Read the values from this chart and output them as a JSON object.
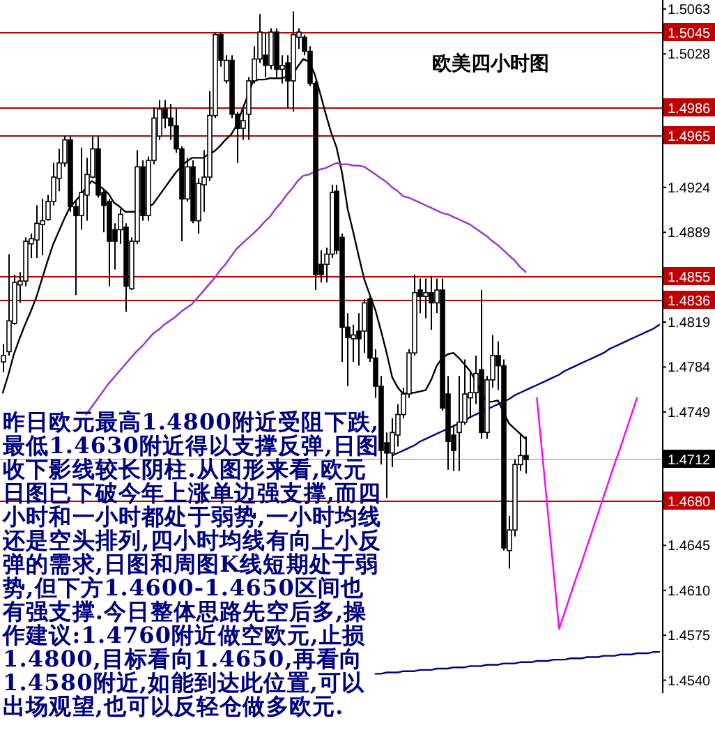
{
  "chart_data": {
    "type": "candlestick",
    "title": "欧美四小时图",
    "categories": [
      null,
      null,
      null,
      null,
      null,
      null,
      null,
      null,
      null,
      null,
      null,
      null,
      null,
      null,
      null,
      null,
      null,
      null,
      null,
      null,
      null,
      null,
      null,
      null,
      null,
      null,
      null,
      null,
      null,
      null,
      null,
      null,
      null,
      null,
      null,
      null,
      null,
      null,
      null,
      null,
      null,
      null,
      null,
      null,
      null,
      null,
      null,
      null,
      null,
      null,
      null,
      null,
      null,
      null,
      null,
      null,
      null,
      null,
      null,
      null,
      null,
      null,
      null,
      null,
      null,
      null,
      null,
      null,
      null,
      null,
      null,
      null,
      null,
      null,
      null,
      null,
      null,
      null,
      null,
      null,
      null,
      null,
      null,
      null,
      null,
      null,
      null,
      null,
      null,
      null,
      null,
      null,
      null,
      null,
      null,
      null,
      null,
      null,
      null,
      null,
      null,
      null,
      null,
      null,
      null,
      null,
      null,
      null,
      null,
      null,
      null,
      null,
      null,
      null,
      null,
      null,
      null,
      null,
      null
    ],
    "ohlc": [
      [
        1.4788,
        1.4802,
        1.478,
        1.4793
      ],
      [
        1.4796,
        1.4872,
        1.4793,
        1.482
      ],
      [
        1.4818,
        1.4856,
        1.4817,
        1.485
      ],
      [
        1.4848,
        1.4858,
        1.4834,
        1.4851
      ],
      [
        1.4851,
        1.4885,
        1.4847,
        1.4882
      ],
      [
        1.488,
        1.4888,
        1.4869,
        1.4884
      ],
      [
        1.4883,
        1.491,
        1.4869,
        1.4896
      ],
      [
        1.4895,
        1.4915,
        1.4871,
        1.4898
      ],
      [
        1.4899,
        1.4918,
        1.4898,
        1.4913
      ],
      [
        1.4913,
        1.4943,
        1.491,
        1.4932
      ],
      [
        1.4931,
        1.4954,
        1.4921,
        1.4943
      ],
      [
        1.4943,
        1.4964,
        1.494,
        1.4961
      ],
      [
        1.4961,
        1.4964,
        1.4905,
        1.4909
      ],
      [
        1.4909,
        1.4913,
        1.484,
        1.4902
      ],
      [
        1.4902,
        1.4955,
        1.4891,
        1.492
      ],
      [
        1.4918,
        1.4947,
        1.4898,
        1.4934
      ],
      [
        1.4932,
        1.4964,
        1.4931,
        1.4954
      ],
      [
        1.4954,
        1.4964,
        1.4916,
        1.4918
      ],
      [
        1.492,
        1.4922,
        1.4889,
        1.491
      ],
      [
        1.4913,
        1.4915,
        1.4847,
        1.4882
      ],
      [
        1.4891,
        1.4896,
        1.486,
        1.4882
      ],
      [
        1.4891,
        1.4907,
        1.488,
        1.4903
      ],
      [
        1.4893,
        1.4896,
        1.4827,
        1.4847
      ],
      [
        1.4845,
        1.4885,
        1.4844,
        1.4882
      ],
      [
        1.4882,
        1.4953,
        1.488,
        1.494
      ],
      [
        1.494,
        1.4945,
        1.4898,
        1.4902
      ],
      [
        1.4902,
        1.4948,
        1.4898,
        1.4945
      ],
      [
        1.4945,
        1.4986,
        1.4942,
        1.4978
      ],
      [
        1.4964,
        1.4992,
        1.4961,
        1.4985
      ],
      [
        1.4985,
        1.4992,
        1.497,
        1.4978
      ],
      [
        1.4978,
        1.4989,
        1.4961,
        1.4972
      ],
      [
        1.4972,
        1.4986,
        1.4951,
        1.4954
      ],
      [
        1.4954,
        1.4956,
        1.4882,
        1.4915
      ],
      [
        1.4915,
        1.4947,
        1.4913,
        1.494
      ],
      [
        1.494,
        1.4945,
        1.4896,
        1.4898
      ],
      [
        1.4898,
        1.4931,
        1.4888,
        1.4927
      ],
      [
        1.4926,
        1.4953,
        1.4905,
        1.4932
      ],
      [
        1.4932,
        1.4999,
        1.4929,
        1.498
      ],
      [
        1.498,
        1.5045,
        1.4978,
        1.5043
      ],
      [
        1.5043,
        1.5045,
        1.5018,
        1.5023
      ],
      [
        1.5007,
        1.5027,
        1.5005,
        1.5023
      ],
      [
        1.5023,
        1.5027,
        1.4978,
        1.4981
      ],
      [
        1.4981,
        1.4983,
        1.4943,
        1.497
      ],
      [
        1.497,
        1.4985,
        1.4961,
        1.4976
      ],
      [
        1.4981,
        1.501,
        1.4961,
        1.5007
      ],
      [
        1.5007,
        1.5034,
        1.5005,
        1.5024
      ],
      [
        1.5024,
        1.5059,
        1.5021,
        1.5045
      ],
      [
        1.5027,
        1.5045,
        1.501,
        1.5019
      ],
      [
        1.5019,
        1.5048,
        1.5016,
        1.5045
      ],
      [
        1.5045,
        1.5048,
        1.501,
        1.5016
      ],
      [
        1.5016,
        1.5027,
        1.5005,
        1.5019
      ],
      [
        1.5021,
        1.5027,
        1.4986,
        1.5007
      ],
      [
        1.5007,
        1.5061,
        1.4983,
        1.5043
      ],
      [
        1.5041,
        1.5048,
        1.5032,
        1.5045
      ],
      [
        1.5041,
        1.5043,
        1.5027,
        1.503
      ],
      [
        1.503,
        1.5034,
        1.5003,
        1.5005
      ],
      [
        1.5005,
        1.5007,
        1.4844,
        1.4856
      ],
      [
        1.4864,
        1.4875,
        1.485,
        1.4856
      ],
      [
        1.4864,
        1.4877,
        1.485,
        1.4872
      ],
      [
        1.4872,
        1.4926,
        1.4869,
        1.492
      ],
      [
        1.4921,
        1.4926,
        1.4872,
        1.4875
      ],
      [
        1.4885,
        1.4888,
        1.4788,
        1.4815
      ],
      [
        1.4815,
        1.4826,
        1.4769,
        1.4807
      ],
      [
        1.4806,
        1.4817,
        1.4788,
        1.4809
      ],
      [
        1.4812,
        1.4826,
        1.4785,
        1.4806
      ],
      [
        1.4812,
        1.4837,
        1.4795,
        1.4834
      ],
      [
        1.4837,
        1.484,
        1.4788,
        1.4791
      ],
      [
        1.4791,
        1.4798,
        1.476,
        1.4769
      ],
      [
        1.4769,
        1.4777,
        1.4708,
        1.4719
      ],
      [
        1.4725,
        1.4733,
        1.4682,
        1.4717
      ],
      [
        1.4717,
        1.4744,
        1.4706,
        1.4733
      ],
      [
        1.4731,
        1.4755,
        1.4722,
        1.4747
      ],
      [
        1.4747,
        1.4768,
        1.4744,
        1.4763
      ],
      [
        1.4763,
        1.4798,
        1.476,
        1.4795
      ],
      [
        1.4795,
        1.4856,
        1.4793,
        1.4842
      ],
      [
        1.4844,
        1.4853,
        1.4826,
        1.4839
      ],
      [
        1.4839,
        1.4853,
        1.4822,
        1.4842
      ],
      [
        1.4842,
        1.4855,
        1.4813,
        1.4834
      ],
      [
        1.4834,
        1.4853,
        1.4826,
        1.4844
      ],
      [
        1.4844,
        1.4853,
        1.475,
        1.4752
      ],
      [
        1.4763,
        1.4777,
        1.4704,
        1.4726
      ],
      [
        1.4731,
        1.4739,
        1.4703,
        1.4719
      ],
      [
        1.4733,
        1.4777,
        1.4703,
        1.4741
      ],
      [
        1.4741,
        1.479,
        1.4739,
        1.4763
      ],
      [
        1.476,
        1.478,
        1.4744,
        1.4764
      ],
      [
        1.4764,
        1.4793,
        1.4755,
        1.4779
      ],
      [
        1.4782,
        1.4844,
        1.4728,
        1.4733
      ],
      [
        1.4733,
        1.4777,
        1.4728,
        1.4774
      ],
      [
        1.4774,
        1.4809,
        1.4768,
        1.4793
      ],
      [
        1.4793,
        1.4804,
        1.4766,
        1.4785
      ],
      [
        1.4785,
        1.479,
        1.4641,
        1.4643
      ],
      [
        1.4641,
        1.4668,
        1.4627,
        1.4657
      ],
      [
        1.4657,
        1.4712,
        1.4652,
        1.4708
      ],
      [
        1.4708,
        1.4731,
        1.4703,
        1.4715
      ],
      [
        1.4715,
        1.473,
        1.4701,
        1.4712
      ],
      null,
      null,
      null,
      null,
      null,
      null,
      null,
      null,
      null,
      null,
      null,
      null,
      null,
      null,
      null,
      null,
      null,
      null,
      null,
      null,
      null,
      null,
      null,
      null
    ],
    "series": [
      {
        "type": "line",
        "color": "#000000",
        "values": [
          1.4764,
          1.4778,
          1.4794,
          1.4806,
          1.4817,
          1.4827,
          1.4838,
          1.4852,
          1.4866,
          1.4879,
          1.4889,
          1.4899,
          1.4908,
          1.4913,
          1.4918,
          1.4924,
          1.4929,
          1.4926,
          1.4923,
          1.4919,
          1.4912,
          1.4909,
          1.4905,
          1.4905,
          1.4905,
          1.4906,
          1.4908,
          1.4911,
          1.4917,
          1.4923,
          1.4929,
          1.4935,
          1.494,
          1.4944,
          1.4947,
          1.4947,
          1.4947,
          1.495,
          1.4952,
          1.4956,
          1.4961,
          1.4965,
          1.4972,
          1.4984,
          1.4995,
          1.5007,
          1.5008,
          1.5008,
          1.5009,
          1.5009,
          1.5009,
          1.501,
          1.5011,
          1.5018,
          1.5024,
          1.5022,
          1.5013,
          1.4998,
          1.4982,
          1.4967,
          1.4955,
          1.4935,
          1.4907,
          1.4889,
          1.487,
          1.4852,
          1.484,
          1.4828,
          1.4812,
          1.4795,
          1.4776,
          1.4768,
          1.4763,
          1.4764,
          1.4764,
          1.4765,
          1.4766,
          1.4774,
          1.4785,
          1.4791,
          1.4794,
          1.4795,
          1.4791,
          1.4786,
          1.4781,
          1.4773,
          1.4764,
          1.4757,
          1.4757,
          1.4758,
          1.4749,
          1.474,
          1.4736,
          1.4732,
          1.4728,
          null,
          null,
          null,
          null,
          null,
          null,
          null,
          null,
          null,
          null,
          null,
          null,
          null,
          null,
          null,
          null,
          null,
          null,
          null,
          null,
          null,
          null,
          null,
          null
        ]
      },
      {
        "type": "line",
        "color": "#9932cc",
        "values": [
          null,
          null,
          null,
          null,
          null,
          null,
          null,
          null,
          null,
          null,
          null,
          null,
          null,
          null,
          null,
          1.4747,
          1.4753,
          1.4759,
          1.4765,
          1.4771,
          1.4776,
          1.4781,
          1.4786,
          1.4791,
          1.4796,
          1.48,
          1.4805,
          1.481,
          1.4813,
          1.4817,
          1.482,
          1.4823,
          1.4827,
          1.483,
          1.4833,
          1.4838,
          1.4843,
          1.4848,
          1.4853,
          1.4859,
          1.4864,
          1.487,
          1.4876,
          1.488,
          1.4884,
          1.4888,
          1.4892,
          1.4897,
          1.4901,
          1.4907,
          1.4912,
          1.4918,
          1.4923,
          1.4929,
          1.4933,
          1.4934,
          1.4936,
          1.4938,
          1.4939,
          1.4941,
          1.4943,
          1.4942,
          1.4942,
          1.4941,
          1.4941,
          1.494,
          1.4937,
          1.4934,
          1.4931,
          1.4928,
          1.4924,
          1.4921,
          1.4917,
          1.4916,
          1.4914,
          1.4912,
          1.491,
          1.4908,
          1.4906,
          1.4904,
          1.4903,
          1.4901,
          1.4899,
          1.4897,
          1.4895,
          1.4892,
          1.4889,
          1.4886,
          1.4882,
          1.4879,
          1.4875,
          1.4871,
          1.4867,
          1.4862,
          1.4858,
          null,
          null,
          null,
          null,
          null,
          null,
          null,
          null,
          null,
          null,
          null,
          null,
          null,
          null,
          null,
          null,
          null,
          null,
          null,
          null,
          null,
          null,
          null,
          null
        ]
      },
      {
        "type": "line",
        "color": "#000080",
        "values": [
          null,
          null,
          null,
          null,
          null,
          null,
          null,
          null,
          null,
          null,
          null,
          null,
          null,
          null,
          null,
          null,
          null,
          null,
          null,
          null,
          null,
          null,
          null,
          null,
          null,
          null,
          null,
          null,
          null,
          null,
          null,
          null,
          null,
          null,
          null,
          null,
          null,
          null,
          null,
          null,
          null,
          null,
          null,
          null,
          null,
          null,
          null,
          null,
          null,
          null,
          null,
          null,
          null,
          null,
          null,
          null,
          null,
          null,
          null,
          null,
          null,
          null,
          null,
          null,
          null,
          null,
          null,
          null,
          null,
          null,
          1.4715,
          1.4717,
          1.4719,
          1.4721,
          1.4723,
          1.4726,
          1.4728,
          1.473,
          1.4732,
          1.4734,
          1.4736,
          1.4738,
          1.474,
          1.4742,
          1.4745,
          1.4747,
          1.4749,
          1.4751,
          1.4753,
          1.4755,
          1.4757,
          1.4759,
          1.4762,
          1.4764,
          1.4766,
          1.4768,
          1.477,
          1.4772,
          1.4774,
          1.4776,
          1.4778,
          1.4781,
          1.4783,
          1.4785,
          1.4787,
          1.4789,
          1.4791,
          1.4793,
          1.4795,
          1.4798,
          1.48,
          1.4802,
          1.4804,
          1.4806,
          1.4808,
          1.481,
          1.4812,
          1.4814,
          1.4817
        ]
      },
      {
        "type": "line",
        "color": "#000080",
        "values": [
          null,
          null,
          null,
          null,
          null,
          null,
          null,
          null,
          null,
          null,
          null,
          null,
          null,
          null,
          null,
          null,
          null,
          null,
          null,
          null,
          null,
          null,
          null,
          null,
          null,
          null,
          null,
          null,
          null,
          null,
          null,
          null,
          null,
          null,
          null,
          null,
          null,
          null,
          null,
          null,
          null,
          null,
          null,
          null,
          null,
          null,
          null,
          null,
          null,
          null,
          null,
          null,
          null,
          null,
          null,
          null,
          null,
          null,
          null,
          null,
          null,
          null,
          null,
          null,
          null,
          null,
          null,
          1.4545,
          1.4545,
          1.4546,
          1.4546,
          1.4546,
          1.4547,
          1.4547,
          1.4547,
          1.4548,
          1.4548,
          1.4548,
          1.4549,
          1.4549,
          1.4549,
          1.455,
          1.455,
          1.455,
          1.4551,
          1.4551,
          1.4551,
          1.4552,
          1.4552,
          1.4552,
          1.4553,
          1.4553,
          1.4553,
          1.4554,
          1.4554,
          1.4554,
          1.4555,
          1.4555,
          1.4555,
          1.4556,
          1.4556,
          1.4556,
          1.4557,
          1.4557,
          1.4557,
          1.4558,
          1.4558,
          1.4558,
          1.4559,
          1.4559,
          1.4559,
          1.456,
          1.456,
          1.456,
          1.4561,
          1.4561,
          1.4561,
          1.4562,
          1.4562
        ]
      },
      {
        "type": "line",
        "color": "#ff00ff",
        "values": [
          null,
          null,
          null,
          null,
          null,
          null,
          null,
          null,
          null,
          null,
          null,
          null,
          null,
          null,
          null,
          null,
          null,
          null,
          null,
          null,
          null,
          null,
          null,
          null,
          null,
          null,
          null,
          null,
          null,
          null,
          null,
          null,
          null,
          null,
          null,
          null,
          null,
          null,
          null,
          null,
          null,
          null,
          null,
          null,
          null,
          null,
          null,
          null,
          null,
          null,
          null,
          null,
          null,
          null,
          null,
          null,
          null,
          null,
          null,
          null,
          null,
          null,
          null,
          null,
          null,
          null,
          null,
          null,
          null,
          null,
          null,
          null,
          null,
          null,
          null,
          null,
          null,
          null,
          null,
          null,
          null,
          null,
          null,
          null,
          null,
          null,
          null,
          null,
          null,
          null,
          null,
          null,
          null,
          null,
          null,
          null,
          1.476,
          1.4715,
          1.467,
          1.4625,
          1.458,
          1.4593,
          1.4606,
          1.4619,
          1.4631,
          1.4644,
          1.4657,
          1.467,
          1.4683,
          1.4696,
          1.4709,
          1.4721,
          1.4734,
          1.4747,
          1.476,
          null,
          null,
          null,
          null
        ]
      }
    ],
    "ylim": [
      1.453,
      1.507
    ],
    "yticks": [
      {
        "value": 1.5063,
        "label": "1.5063"
      },
      {
        "value": 1.5028,
        "label": "1.5028"
      },
      {
        "value": 1.4924,
        "label": "1.4924"
      },
      {
        "value": 1.4889,
        "label": "1.4889"
      },
      {
        "value": 1.4819,
        "label": "1.4819"
      },
      {
        "value": 1.4784,
        "label": "1.4784"
      },
      {
        "value": 1.4749,
        "label": "1.4749"
      },
      {
        "value": 1.4645,
        "label": "1.4645"
      },
      {
        "value": 1.461,
        "label": "1.4610"
      },
      {
        "value": 1.4575,
        "label": "1.4575"
      },
      {
        "value": 1.454,
        "label": "1.4540"
      }
    ],
    "tick_labels": "y",
    "ref_lines": [
      {
        "axis": "y",
        "value": 1.5045,
        "label": "1.5045",
        "color": "#c00000"
      },
      {
        "axis": "y",
        "value": 1.4986,
        "label": "1.4986",
        "color": "#c00000"
      },
      {
        "axis": "y",
        "value": 1.4965,
        "label": "1.4965",
        "color": "#c00000"
      },
      {
        "axis": "y",
        "value": 1.4855,
        "label": "1.4855",
        "color": "#c00000"
      },
      {
        "axis": "y",
        "value": 1.4836,
        "label": "1.4836",
        "color": "#c00000"
      },
      {
        "axis": "y",
        "value": 1.4712,
        "label": "1.4712",
        "color": "#c0c0c0"
      },
      {
        "axis": "y",
        "value": 1.468,
        "label": "1.4680",
        "color": "#c00000"
      }
    ],
    "annotations": [
      "昨日欧元最高1.4800附近受阻下跌,最低1.4630附近得以支撑反弹,日图收下影线较长阴柱.从图形来看,欧元日图已下破今年上涨单边强支撑,而四小时和一小时都处于弱势,一小时均线还是空头排列,四小时均线有向上小反弹的需求,日图和周图K线短期处于弱势,但下方1.4600-1.4650区间也有强支撑.今日整体思路先空后多,操作建议:1.4760附近做空欧元,止损1.4800,目标看向1.4650,再看向1.4580附近,如能到达此位置,可以出场观望,也可以反轻仓做多欧元."
    ]
  }
}
